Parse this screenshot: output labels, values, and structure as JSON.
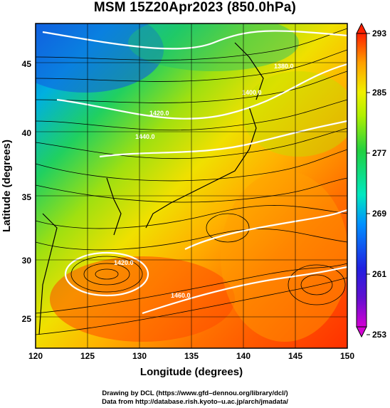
{
  "title": "MSM 15Z20Apr2023 (850.0hPa)",
  "map": {
    "x_axis_title": "Longitude (degrees)",
    "y_axis_title": "Latitude  (degrees)",
    "lon_range": [
      120,
      150
    ],
    "lat_range": [
      22.4,
      47.6
    ],
    "lon_ticks": [
      "120",
      "125",
      "130",
      "135",
      "140",
      "145",
      "150"
    ],
    "lat_ticks": [
      "25",
      "30",
      "35",
      "40",
      "45"
    ],
    "contour_labels": [
      "1380.0",
      "1420.0",
      "1440.0",
      "1460.0",
      "1400.0",
      "1420.0"
    ]
  },
  "colorbar": {
    "range": [
      253,
      293
    ],
    "tick_labels": [
      "293",
      "285",
      "277",
      "269",
      "261",
      "253"
    ],
    "colors": [
      "#d400d4",
      "#2020e0",
      "#00a0ff",
      "#00e8c0",
      "#20d040",
      "#b0f000",
      "#f0f000",
      "#ffb000",
      "#ff6000",
      "#ff2000"
    ]
  },
  "credits": {
    "line1": "Drawing by DCL (https://www.gfd–dennou.org/library/dcl/)",
    "line2": "Data from http://database.rish.kyoto–u.ac.jp/arch/jmadata/"
  }
}
